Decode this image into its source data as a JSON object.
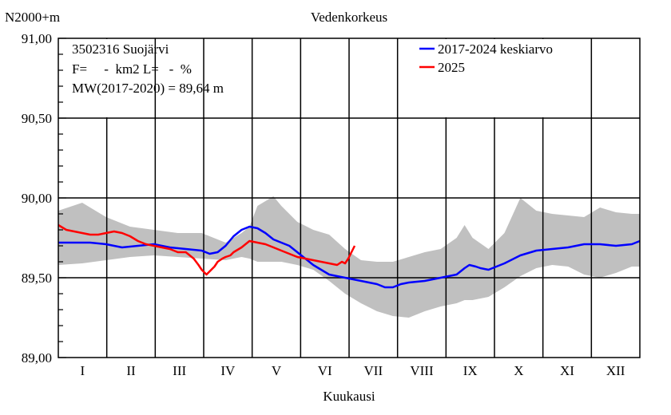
{
  "header": {
    "y_unit": "N2000+m",
    "title": "Vedenkorkeus"
  },
  "info": {
    "station": "3502316 Suojärvi",
    "area_line": "F=     -  km2 L=   -  %",
    "mw_line": "MW(2017-2020) = 89,64 m"
  },
  "legend": {
    "items": [
      {
        "label": "2017-2024 keskiarvo",
        "color": "#0000ff"
      },
      {
        "label": "2025",
        "color": "#ff0000"
      }
    ]
  },
  "chart_data": {
    "type": "line",
    "title": "Vedenkorkeus",
    "xlabel": "Kuukausi",
    "ylabel": "N2000+m",
    "ylim": [
      89.0,
      91.0
    ],
    "xlim": [
      0,
      365
    ],
    "grid": true,
    "legend_position": "top-right",
    "y_ticks": [
      89.0,
      89.5,
      90.0,
      90.5,
      91.0
    ],
    "y_tick_labels": [
      "89,00",
      "89,50",
      "90,00",
      "90,50",
      "91,00"
    ],
    "month_labels": [
      "I",
      "II",
      "III",
      "IV",
      "V",
      "VI",
      "VII",
      "VIII",
      "IX",
      "X",
      "XI",
      "XII"
    ],
    "band": {
      "color": "#c0c0c0",
      "x": [
        0,
        15,
        30,
        45,
        60,
        75,
        90,
        105,
        115,
        120,
        125,
        135,
        140,
        150,
        160,
        170,
        180,
        190,
        200,
        210,
        220,
        230,
        240,
        250,
        255,
        260,
        270,
        280,
        290,
        300,
        310,
        320,
        330,
        340,
        350,
        360,
        365
      ],
      "lower": [
        89.58,
        89.59,
        89.61,
        89.63,
        89.64,
        89.63,
        89.62,
        89.61,
        89.63,
        89.62,
        89.6,
        89.6,
        89.6,
        89.58,
        89.55,
        89.48,
        89.4,
        89.34,
        89.29,
        89.26,
        89.25,
        89.29,
        89.32,
        89.34,
        89.36,
        89.36,
        89.38,
        89.44,
        89.51,
        89.56,
        89.58,
        89.57,
        89.52,
        89.5,
        89.53,
        89.57,
        89.57
      ],
      "upper": [
        89.92,
        89.97,
        89.88,
        89.82,
        89.8,
        89.78,
        89.78,
        89.72,
        89.78,
        89.82,
        89.95,
        90.01,
        89.95,
        89.85,
        89.8,
        89.77,
        89.68,
        89.61,
        89.6,
        89.6,
        89.63,
        89.66,
        89.68,
        89.75,
        89.83,
        89.75,
        89.68,
        89.78,
        90.0,
        89.92,
        89.9,
        89.89,
        89.88,
        89.94,
        89.91,
        89.9,
        89.9
      ]
    },
    "series": [
      {
        "name": "2017-2024 keskiarvo",
        "color": "#0000ff",
        "x": [
          0,
          10,
          20,
          30,
          40,
          50,
          60,
          70,
          80,
          90,
          95,
          100,
          105,
          110,
          115,
          120,
          125,
          130,
          135,
          140,
          145,
          150,
          155,
          160,
          165,
          170,
          175,
          180,
          190,
          200,
          205,
          210,
          215,
          220,
          230,
          240,
          245,
          250,
          255,
          258,
          262,
          265,
          270,
          275,
          280,
          290,
          300,
          310,
          320,
          330,
          340,
          350,
          360,
          365
        ],
        "y": [
          89.72,
          89.72,
          89.72,
          89.71,
          89.69,
          89.7,
          89.71,
          89.69,
          89.68,
          89.67,
          89.65,
          89.66,
          89.7,
          89.76,
          89.8,
          89.82,
          89.81,
          89.78,
          89.74,
          89.72,
          89.7,
          89.66,
          89.62,
          89.58,
          89.55,
          89.52,
          89.51,
          89.5,
          89.48,
          89.46,
          89.44,
          89.44,
          89.46,
          89.47,
          89.48,
          89.5,
          89.51,
          89.52,
          89.56,
          89.58,
          89.57,
          89.56,
          89.55,
          89.57,
          89.59,
          89.64,
          89.67,
          89.68,
          89.69,
          89.71,
          89.71,
          89.7,
          89.71,
          89.73
        ]
      },
      {
        "name": "2025",
        "color": "#ff0000",
        "x": [
          0,
          5,
          10,
          15,
          20,
          25,
          30,
          35,
          40,
          45,
          50,
          55,
          60,
          65,
          70,
          75,
          80,
          85,
          88,
          90,
          93,
          95,
          98,
          100,
          103,
          105,
          108,
          110,
          115,
          120,
          125,
          130,
          135,
          140,
          145,
          150,
          155,
          160,
          165,
          170,
          175,
          178,
          180,
          182,
          184,
          186
        ],
        "y": [
          89.83,
          89.8,
          89.79,
          89.78,
          89.77,
          89.77,
          89.78,
          89.79,
          89.78,
          89.76,
          89.73,
          89.71,
          89.7,
          89.69,
          89.68,
          89.66,
          89.66,
          89.62,
          89.58,
          89.55,
          89.52,
          89.54,
          89.57,
          89.6,
          89.62,
          89.63,
          89.64,
          89.66,
          89.69,
          89.73,
          89.72,
          89.71,
          89.69,
          89.67,
          89.65,
          89.63,
          89.62,
          89.61,
          89.6,
          89.59,
          89.58,
          89.6,
          89.59,
          89.62,
          89.66,
          89.7
        ]
      }
    ]
  }
}
